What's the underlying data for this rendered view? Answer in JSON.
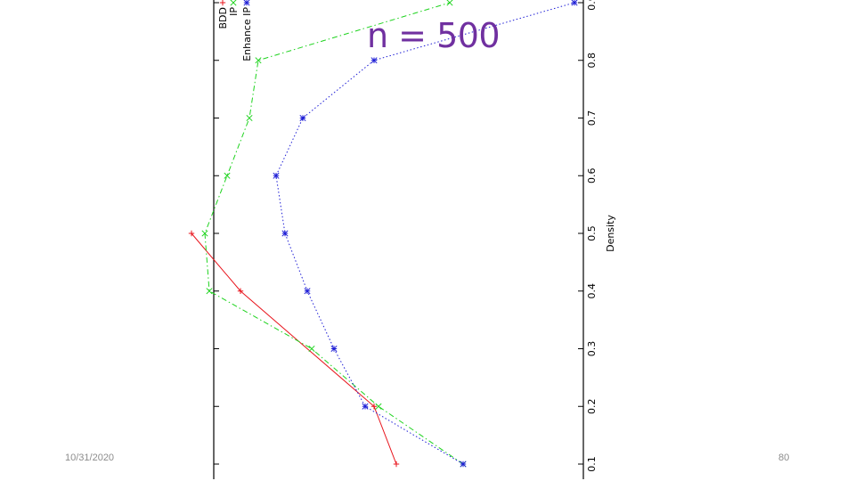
{
  "slide": {
    "title": "n = 500",
    "date": "10/31/2020",
    "page_number": "80"
  },
  "chart_data": {
    "type": "line",
    "orientation": "rotated-90",
    "xlabel": "Density",
    "ylabel": "",
    "x_ticks": [
      "0.1",
      "0.2",
      "0.3",
      "0.4",
      "0.5",
      "0.6",
      "0.7",
      "0.8",
      "0.9"
    ],
    "xlim": [
      0.1,
      0.9
    ],
    "grid": false,
    "legend_position": "top-left",
    "series": [
      {
        "name": "BDD",
        "color": "#e8141c",
        "marker": "+",
        "dash": "solid",
        "x": [
          0.1,
          0.2,
          0.4,
          0.5
        ],
        "y": [
          0.41,
          0.36,
          0.06,
          -0.05
        ]
      },
      {
        "name": "IP",
        "color": "#1ed31e",
        "marker": "x",
        "dash": "dashdot",
        "x": [
          0.1,
          0.2,
          0.3,
          0.4,
          0.5,
          0.6,
          0.7,
          0.8,
          0.9
        ],
        "y": [
          0.56,
          0.37,
          0.22,
          -0.01,
          -0.02,
          0.03,
          0.08,
          0.1,
          0.53
        ]
      },
      {
        "name": "Enhance IP",
        "color": "#1f1fd6",
        "marker": "*",
        "dash": "dotted",
        "x": [
          0.1,
          0.2,
          0.3,
          0.4,
          0.5,
          0.6,
          0.7,
          0.8,
          0.9
        ],
        "y": [
          0.56,
          0.34,
          0.27,
          0.21,
          0.16,
          0.14,
          0.2,
          0.36,
          0.81
        ]
      }
    ]
  }
}
